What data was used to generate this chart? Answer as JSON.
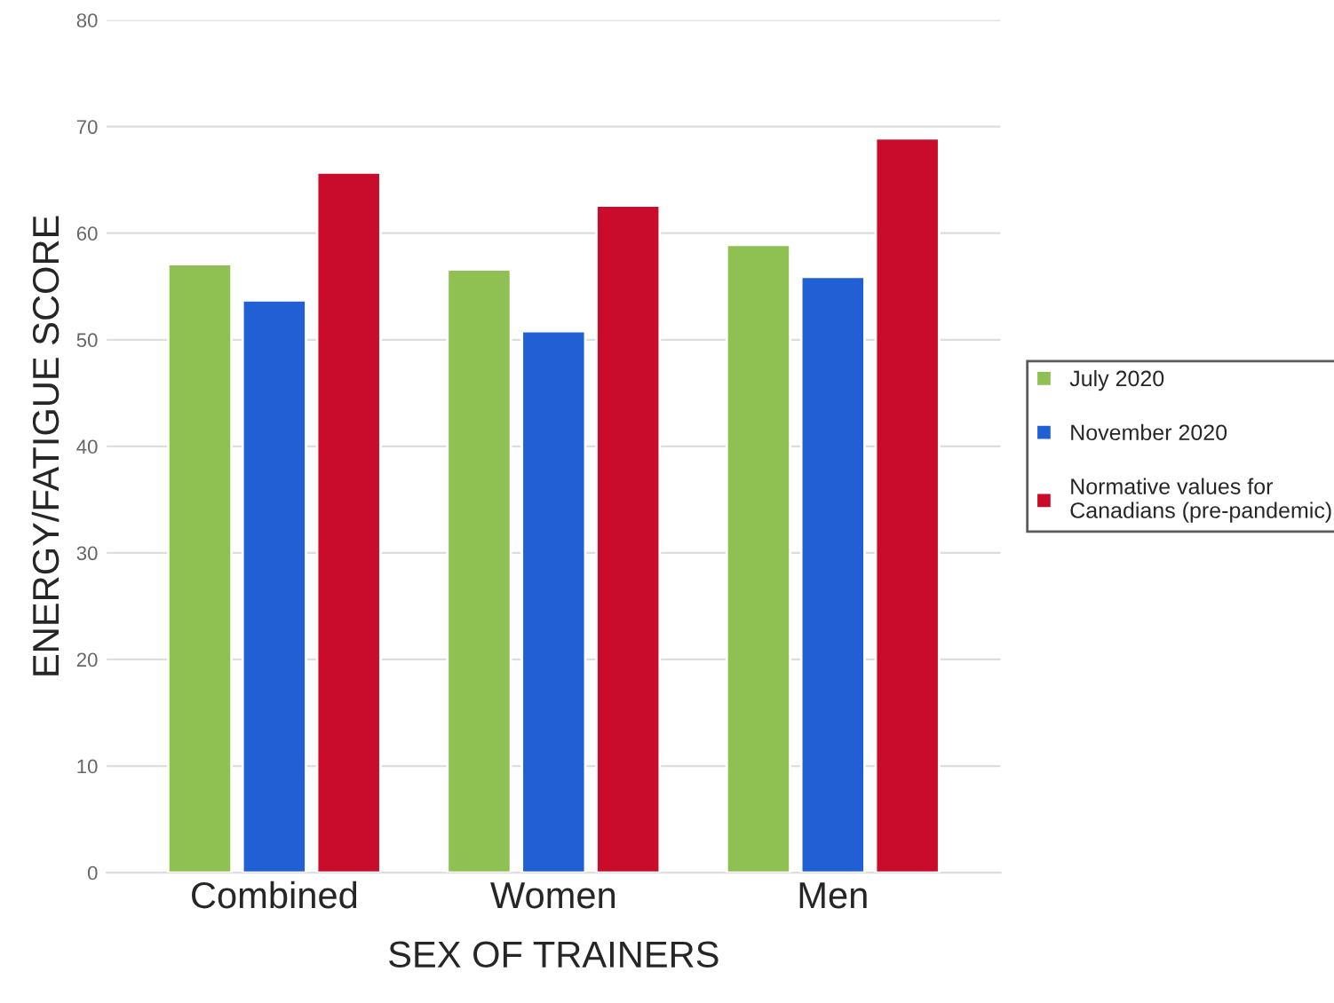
{
  "chart_data": {
    "type": "bar",
    "xlabel": "SEX OF TRAINERS",
    "ylabel": "ENERGY/FATIGUE SCORE",
    "categories": [
      "Combined",
      "Women",
      "Men"
    ],
    "series": [
      {
        "name": "July 2020",
        "color": "#8fc152",
        "values": [
          57.1,
          56.6,
          58.9
        ]
      },
      {
        "name": "November 2020",
        "color": "#2160d4",
        "values": [
          53.7,
          50.8,
          55.9
        ]
      },
      {
        "name": "Normative values for\nCanadians (pre-pandemic)",
        "color": "#c90c2c",
        "values": [
          65.7,
          62.6,
          68.9
        ]
      }
    ],
    "ylim": [
      0,
      80
    ],
    "yticks": [
      0,
      10,
      20,
      30,
      40,
      50,
      60,
      70,
      80
    ],
    "grid": "y",
    "legend": "right"
  }
}
